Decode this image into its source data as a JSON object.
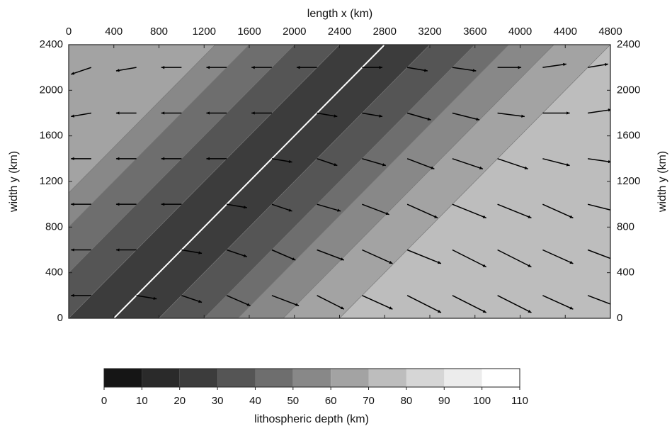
{
  "chart_data": {
    "type": "contour",
    "x_label": "length x (km)",
    "y_label": "width y (km)",
    "xlim": [
      0,
      4800
    ],
    "ylim": [
      0,
      2400
    ],
    "xticks": [
      0,
      400,
      800,
      1200,
      1600,
      2000,
      2400,
      2800,
      3200,
      3600,
      4000,
      4400,
      4800
    ],
    "yticks": [
      0,
      400,
      800,
      1200,
      1600,
      2000,
      2400
    ],
    "field": {
      "ridge_x": [
        400,
        2800
      ],
      "ridge_y": [
        0,
        2400
      ],
      "ridge_color": "#ffffff",
      "band_offsets": [
        -2800,
        -1500,
        -1200,
        -800,
        -400,
        0,
        400,
        800,
        1100,
        1500,
        2000,
        4800
      ],
      "band_depths": [
        65,
        55,
        45,
        35,
        25,
        25,
        35,
        45,
        55,
        65,
        75
      ]
    },
    "vectors": {
      "color": "#000000",
      "x": [
        200,
        600,
        1000,
        1400,
        1800,
        2200,
        2600,
        3000,
        3400,
        3800,
        4200,
        4600
      ],
      "y": [
        200,
        600,
        1000,
        1400,
        1800,
        2200
      ],
      "u": [
        [
          -3,
          3,
          3,
          3.5,
          4,
          4,
          4.5,
          5,
          5,
          5,
          4.5,
          4
        ],
        [
          -3,
          -3,
          3,
          3,
          3.5,
          4,
          4.5,
          5,
          5,
          5,
          4.5,
          4
        ],
        [
          -3,
          -3,
          -3,
          3,
          3,
          3.5,
          4,
          4.5,
          5,
          5,
          4.5,
          4
        ],
        [
          -3,
          -3,
          -3,
          -3,
          3,
          3,
          3.5,
          4,
          4.5,
          4.5,
          4,
          3.5
        ],
        [
          -3,
          -3,
          -3,
          -3,
          -3,
          3,
          3,
          3.5,
          4,
          4,
          4,
          3.5
        ],
        [
          -3,
          -3,
          -3,
          -3,
          -3,
          -3,
          3,
          3,
          3.5,
          3.5,
          3.5,
          3
        ]
      ],
      "v": [
        [
          0,
          -0.5,
          -1,
          -1.5,
          -1.5,
          -2,
          -2,
          -2.5,
          -2.5,
          -2.5,
          -2,
          -1.5
        ],
        [
          0,
          0,
          -0.5,
          -1,
          -1.5,
          -1.5,
          -2,
          -2,
          -2.5,
          -2.5,
          -2,
          -1.5
        ],
        [
          0,
          0,
          0,
          -0.5,
          -1,
          -1,
          -1.5,
          -2,
          -2,
          -2,
          -2,
          -1
        ],
        [
          0,
          0,
          0,
          0,
          -0.5,
          -1,
          -1,
          -1.5,
          -1.5,
          -1.5,
          -1,
          -0.5
        ],
        [
          -0.5,
          0,
          0,
          0,
          0,
          -0.5,
          -0.5,
          -1,
          -1,
          -0.5,
          0,
          0.5
        ],
        [
          -1,
          -0.5,
          0,
          0,
          0,
          0,
          0,
          -0.5,
          -0.5,
          0,
          0.5,
          0.5
        ]
      ]
    },
    "colorbar": {
      "label": "lithospheric depth (km)",
      "ticks": [
        0,
        10,
        20,
        30,
        40,
        50,
        60,
        70,
        80,
        90,
        100,
        110
      ],
      "colors": [
        "#151515",
        "#2a2a2a",
        "#3c3c3c",
        "#555555",
        "#6e6e6e",
        "#888888",
        "#a3a3a3",
        "#bdbdbd",
        "#d6d6d6",
        "#ececec",
        "#ffffff"
      ]
    }
  }
}
